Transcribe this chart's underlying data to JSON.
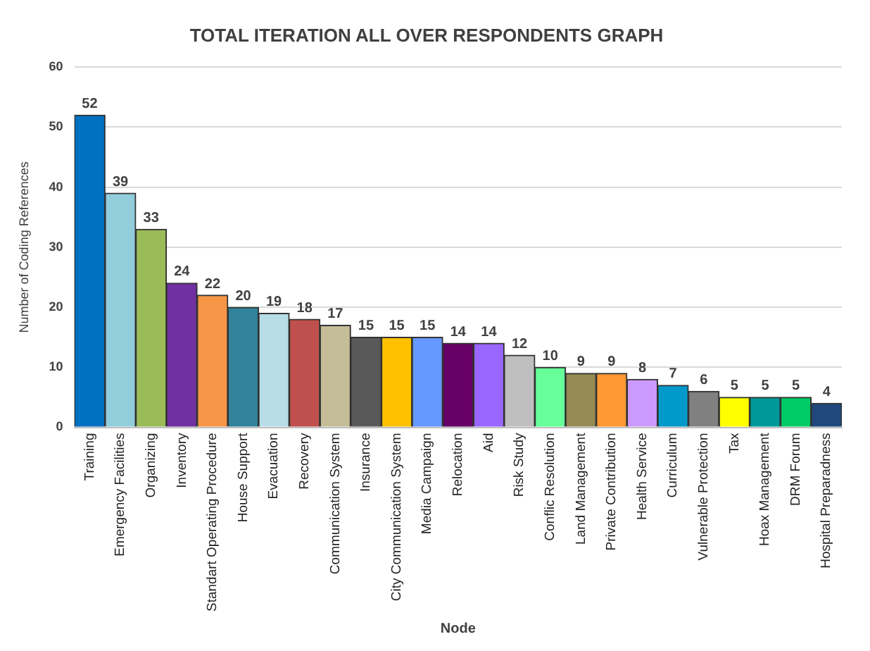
{
  "chart_data": {
    "type": "bar",
    "title": "TOTAL ITERATION ALL OVER RESPONDENTS GRAPH",
    "xlabel": "Node",
    "ylabel": "Number of Coding References",
    "categories": [
      "Training",
      "Emergency Facilities",
      "Organizing",
      "Inventory",
      "Standart Operating Procedure",
      "House Support",
      "Evacuation",
      "Recovery",
      "Communication System",
      "Insurance",
      "City Communication System",
      "Media Campaign",
      "Relocation",
      "Aid",
      "Risk Study",
      "Conflic Resolution",
      "Land Management",
      "Private Contribution",
      "Health Service",
      "Curriculum",
      "Vulnerable Protection",
      "Tax",
      "Hoax Management",
      "DRM Forum",
      "Hospital Preparadness"
    ],
    "values": [
      52,
      39,
      33,
      24,
      22,
      20,
      19,
      18,
      17,
      15,
      15,
      15,
      14,
      14,
      12,
      10,
      9,
      9,
      8,
      7,
      6,
      5,
      5,
      5,
      4
    ],
    "colors": [
      "#0070c0",
      "#92cddc",
      "#9bbb59",
      "#7030a0",
      "#f79646",
      "#31849b",
      "#b7dde8",
      "#c0504d",
      "#c4bd97",
      "#595959",
      "#ffc000",
      "#6699ff",
      "#660066",
      "#9966ff",
      "#bfbfbf",
      "#66ff99",
      "#948a54",
      "#ff9933",
      "#cc99ff",
      "#0099cc",
      "#808080",
      "#ffff00",
      "#009999",
      "#00cc66",
      "#1f497d"
    ],
    "ylim": [
      0,
      60
    ],
    "yticks": [
      0,
      10,
      20,
      30,
      40,
      50,
      60
    ],
    "grid": "y",
    "legend": false,
    "data_labels": true
  }
}
